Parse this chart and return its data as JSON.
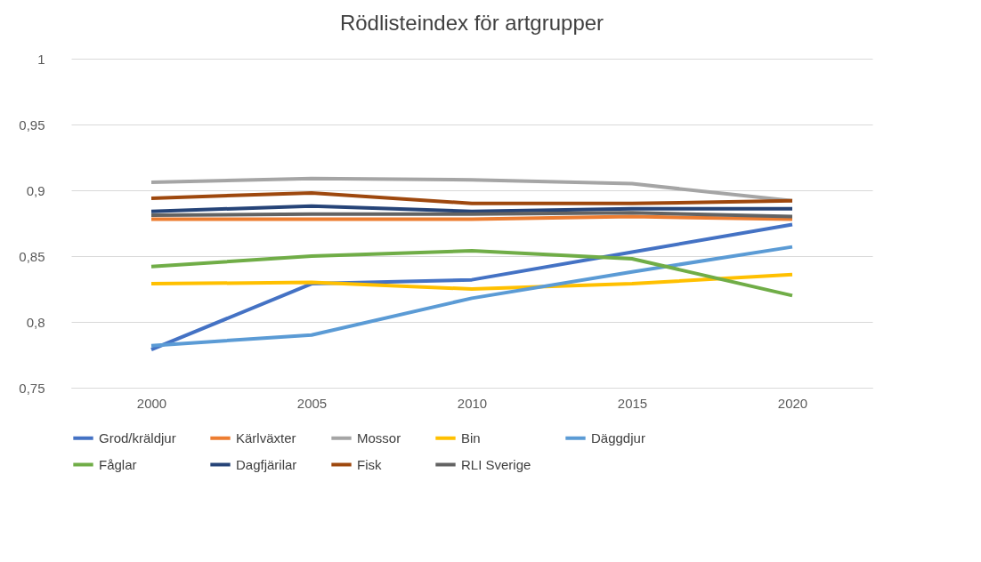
{
  "chart_data": {
    "type": "line",
    "title": "Rödlisteindex för artgrupper",
    "categories": [
      "2000",
      "2005",
      "2010",
      "2015",
      "2020"
    ],
    "ylim": [
      0.75,
      1
    ],
    "yticks": [
      {
        "value": 0.75,
        "label": "0,75"
      },
      {
        "value": 0.8,
        "label": "0,8"
      },
      {
        "value": 0.85,
        "label": "0,85"
      },
      {
        "value": 0.9,
        "label": "0,9"
      },
      {
        "value": 0.95,
        "label": "0,95"
      },
      1
    ],
    "grid": "y",
    "legend": "bottom",
    "line_style": "solid",
    "marker": "none",
    "series": [
      {
        "name": "Grod/kräldjur",
        "color": "#4472c4",
        "values": [
          0.779,
          0.829,
          0.832,
          0.853,
          0.874
        ]
      },
      {
        "name": "Kärlväxter",
        "color": "#ed7d31",
        "values": [
          0.878,
          0.878,
          0.878,
          0.88,
          0.878
        ]
      },
      {
        "name": "Mossor",
        "color": "#a5a5a5",
        "values": [
          0.906,
          0.909,
          0.908,
          0.905,
          0.892
        ]
      },
      {
        "name": "Bin",
        "color": "#ffc000",
        "values": [
          0.829,
          0.83,
          0.825,
          0.829,
          0.836
        ]
      },
      {
        "name": "Däggdjur",
        "color": "#5b9bd5",
        "values": [
          0.782,
          0.79,
          0.818,
          0.838,
          0.857
        ]
      },
      {
        "name": "Fåglar",
        "color": "#70ad47",
        "values": [
          0.842,
          0.85,
          0.854,
          0.848,
          0.82
        ]
      },
      {
        "name": "Dagfjärilar",
        "color": "#264478",
        "values": [
          0.884,
          0.888,
          0.884,
          0.886,
          0.886
        ]
      },
      {
        "name": "Fisk",
        "color": "#9e480e",
        "values": [
          0.894,
          0.898,
          0.89,
          0.89,
          0.892
        ]
      },
      {
        "name": "RLI Sverige",
        "color": "#636363",
        "values": [
          0.881,
          0.882,
          0.882,
          0.883,
          0.88
        ]
      }
    ]
  }
}
